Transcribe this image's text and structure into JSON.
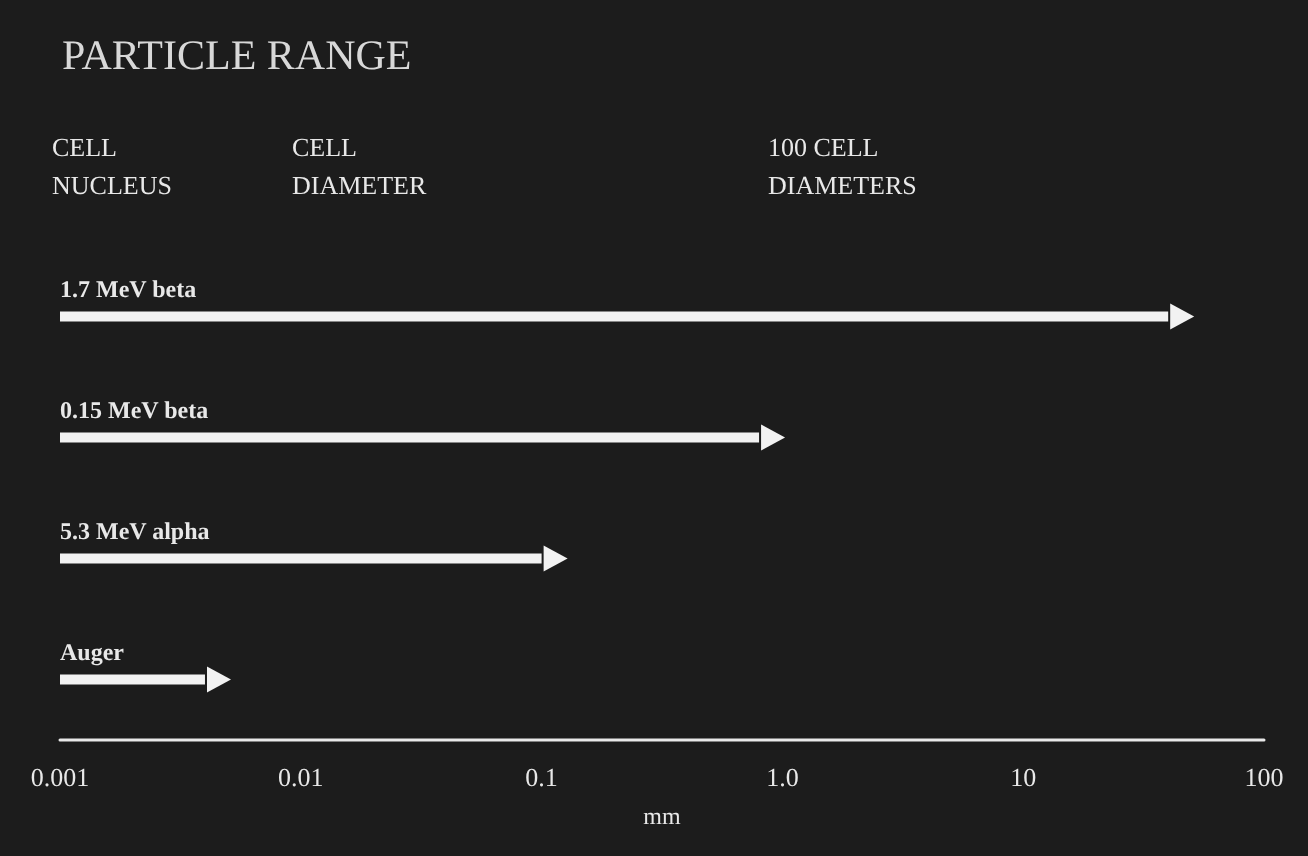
{
  "chart_data": {
    "type": "bar",
    "orientation": "horizontal",
    "title": "PARTICLE RANGE",
    "xlabel": "mm",
    "categories": [
      "1.7 MeV beta",
      "0.15 MeV beta",
      "5.3 MeV alpha",
      "Auger"
    ],
    "values": [
      40,
      0.8,
      0.1,
      0.004
    ],
    "color": "#f2f2f2",
    "log": "x",
    "xlim": [
      0.001,
      100
    ],
    "xticks": [
      0.001,
      0.01,
      0.1,
      {
        "value": 1,
        "label": "1.0"
      },
      10,
      100
    ],
    "grid": false,
    "annotations": [
      "CELL\nNUCLEUS",
      "CELL\nDIAMETER",
      "100 CELL\nDIAMETERS"
    ]
  }
}
